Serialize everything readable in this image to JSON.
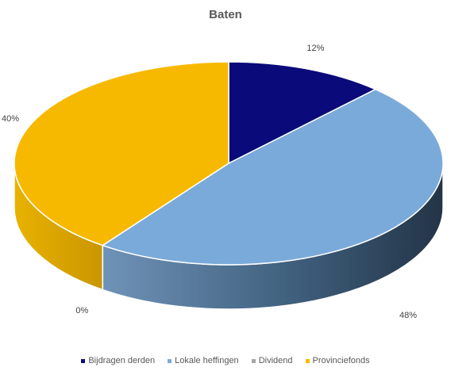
{
  "chart_data": {
    "type": "pie",
    "title": "Baten",
    "categories": [
      "Bijdragen derden",
      "Lokale heffingen",
      "Dividend",
      "Provinciefonds"
    ],
    "values": [
      12,
      48,
      0,
      40
    ],
    "labels": [
      "12%",
      "48%",
      "0%",
      "40%"
    ],
    "colors": [
      "#0a0a7a",
      "#7aaad9",
      "#a5a5a5",
      "#f7b900"
    ],
    "side_colors": [
      "#05054a",
      "#3d5670",
      "#666666",
      "#d39e00"
    ],
    "legend_position": "bottom",
    "three_d": true
  }
}
